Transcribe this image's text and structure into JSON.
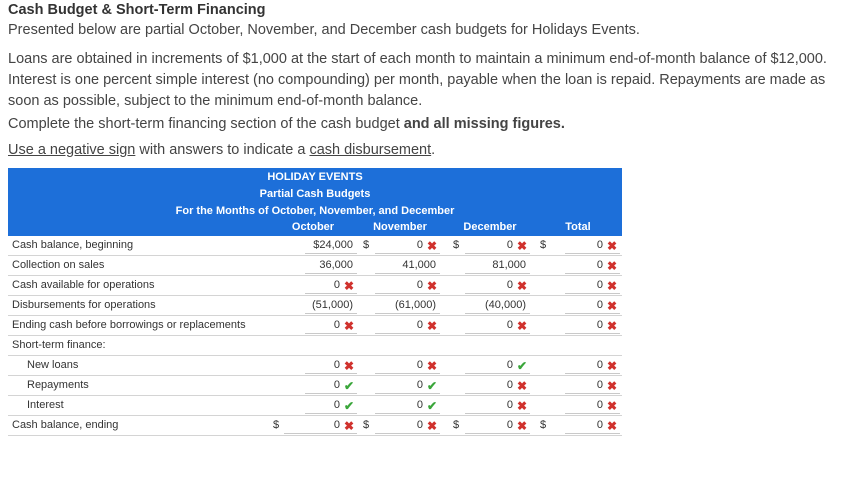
{
  "header": {
    "title": "Cash Budget & Short-Term Financing",
    "intro": "Presented below are partial October, November, and December cash budgets for Holidays Events."
  },
  "paragraph": "Loans are obtained in increments of $1,000 at the start of each month to maintain a minimum end-of-month balance of $12,000. Interest is one percent simple interest (no compounding) per month, payable when the loan is repaid. Repayments are made as soon as possible, subject to the minimum end-of-month balance.",
  "instruction": {
    "text": "Complete the short-term financing section of the cash budget ",
    "bold": "and all missing figures."
  },
  "note": {
    "link1": "Use a negative sign",
    "text": " with answers to indicate a ",
    "link2": "cash disbursement",
    "end": "."
  },
  "table": {
    "company": "HOLIDAY EVENTS",
    "subtitle": "Partial Cash Budgets",
    "period": "For the Months of October, November, and December",
    "columns": [
      "October",
      "November",
      "December",
      "Total"
    ],
    "rows": [
      {
        "label": "Cash balance, beginning",
        "cells": [
          {
            "text": "$24,000"
          },
          {
            "sign": "$",
            "text": "0",
            "status": "incorrect"
          },
          {
            "sign": "$",
            "text": "0",
            "status": "incorrect"
          },
          {
            "sign": "$",
            "text": "0",
            "status": "incorrect"
          }
        ]
      },
      {
        "label": "Collection on sales",
        "cells": [
          {
            "text": "36,000"
          },
          {
            "text": "41,000"
          },
          {
            "text": "81,000"
          },
          {
            "text": "0",
            "status": "incorrect"
          }
        ]
      },
      {
        "label": "Cash available for operations",
        "cells": [
          {
            "text": "0",
            "status": "incorrect"
          },
          {
            "text": "0",
            "status": "incorrect"
          },
          {
            "text": "0",
            "status": "incorrect"
          },
          {
            "text": "0",
            "status": "incorrect"
          }
        ]
      },
      {
        "label": "Disbursements for operations",
        "cells": [
          {
            "text": "(51,000)"
          },
          {
            "text": "(61,000)"
          },
          {
            "text": "(40,000)"
          },
          {
            "text": "0",
            "status": "incorrect"
          }
        ]
      },
      {
        "label": "Ending cash before borrowings or replacements",
        "cells": [
          {
            "text": "0",
            "status": "incorrect"
          },
          {
            "text": "0",
            "status": "incorrect"
          },
          {
            "text": "0",
            "status": "incorrect"
          },
          {
            "text": "0",
            "status": "incorrect"
          }
        ]
      }
    ],
    "financing": {
      "label": "Short-term finance:",
      "rows": [
        {
          "label": "New loans",
          "cells": [
            {
              "text": "0",
              "status": "incorrect"
            },
            {
              "text": "0",
              "status": "incorrect"
            },
            {
              "text": "0",
              "status": "correct"
            },
            {
              "text": "0",
              "status": "incorrect"
            }
          ]
        },
        {
          "label": "Repayments",
          "cells": [
            {
              "text": "0",
              "status": "correct"
            },
            {
              "text": "0",
              "status": "correct"
            },
            {
              "text": "0",
              "status": "incorrect"
            },
            {
              "text": "0",
              "status": "incorrect"
            }
          ]
        },
        {
          "label": "Interest",
          "cells": [
            {
              "text": "0",
              "status": "correct"
            },
            {
              "text": "0",
              "status": "correct"
            },
            {
              "text": "0",
              "status": "incorrect"
            },
            {
              "text": "0",
              "status": "incorrect"
            }
          ]
        }
      ]
    },
    "ending": {
      "label": "Cash balance, ending",
      "cells": [
        {
          "sign": "$",
          "text": "0",
          "status": "incorrect"
        },
        {
          "sign": "$",
          "text": "0",
          "status": "incorrect"
        },
        {
          "sign": "$",
          "text": "0",
          "status": "incorrect"
        },
        {
          "sign": "$",
          "text": "0",
          "status": "incorrect"
        }
      ]
    }
  }
}
